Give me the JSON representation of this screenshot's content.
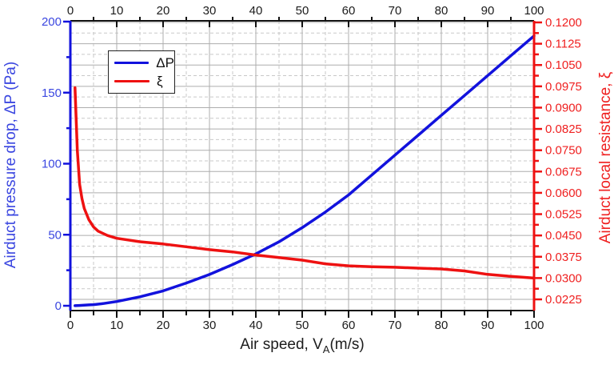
{
  "chart_data": {
    "type": "line",
    "title": "",
    "grid": {
      "major_on": true,
      "minor_on": true,
      "major_color": "#adadad",
      "minor_color": "#c9c9c9"
    },
    "x_axis": {
      "label_prefix": "Air speed, V",
      "label_sub": "A",
      "label_suffix": "(m/s)",
      "min": 0,
      "max": 100,
      "major_step": 10,
      "minor_step": 5,
      "tick_labels": [
        "0",
        "10",
        "20",
        "30",
        "40",
        "50",
        "60",
        "70",
        "80",
        "90",
        "100"
      ],
      "tick_color": "#1c1c1c",
      "axis_color": "#111111",
      "mirror_top_axis": true
    },
    "y_left": {
      "label": "Airduct pressure drop, ΔP (Pa)",
      "min": 0,
      "max": 200,
      "major_step": 50,
      "minor_step": 25,
      "tick_values": [
        0,
        50,
        100,
        150,
        200
      ],
      "tick_labels": [
        "0",
        "50",
        "100",
        "150",
        "200"
      ],
      "minor_tick_values": [
        25,
        75,
        125,
        175
      ],
      "color": "#1212dd",
      "text_color": "#3a46e0"
    },
    "y_right": {
      "label": "Airduct local resistance, ξ",
      "min": 0.0225,
      "max": 0.12,
      "major_step": 0.0075,
      "tick_labels": [
        "0.0225",
        "0.0300",
        "0.0375",
        "0.0450",
        "0.0525",
        "0.0600",
        "0.0675",
        "0.0750",
        "0.0825",
        "0.0900",
        "0.0975",
        "0.1050",
        "0.1125",
        "0.1200"
      ],
      "color": "#ee1111",
      "text_color": "#ef2020"
    },
    "series": [
      {
        "name": "ΔP",
        "axis": "left",
        "color": "#1212dd",
        "x": [
          1,
          2,
          3,
          4,
          5,
          7,
          10,
          15,
          20,
          25,
          30,
          35,
          40,
          45,
          50,
          55,
          60,
          65,
          70,
          75,
          80,
          85,
          90,
          95,
          100
        ],
        "y": [
          0.06,
          0.2,
          0.4,
          0.6,
          0.8,
          1.5,
          3,
          6.3,
          10.5,
          16,
          22,
          29,
          36.5,
          45,
          55,
          66,
          78,
          92,
          106,
          120,
          134,
          148,
          162,
          176,
          190
        ]
      },
      {
        "name": "ξ",
        "axis": "right",
        "color": "#ee1111",
        "x": [
          1,
          1.5,
          2,
          2.5,
          3,
          4,
          5,
          6,
          8,
          10,
          15,
          20,
          25,
          30,
          35,
          40,
          45,
          50,
          55,
          60,
          65,
          70,
          75,
          80,
          85,
          90,
          95,
          100
        ],
        "y": [
          0.097,
          0.075,
          0.063,
          0.058,
          0.0545,
          0.0505,
          0.048,
          0.0465,
          0.045,
          0.044,
          0.0428,
          0.042,
          0.041,
          0.04,
          0.0392,
          0.0381,
          0.0372,
          0.0363,
          0.035,
          0.0343,
          0.034,
          0.0338,
          0.0335,
          0.0332,
          0.0325,
          0.0313,
          0.0306,
          0.03
        ]
      }
    ],
    "legend": {
      "position": "top-left",
      "items": [
        {
          "label": "ΔP",
          "color": "#1212dd"
        },
        {
          "label": "ξ",
          "color": "#ee1111"
        }
      ]
    }
  }
}
